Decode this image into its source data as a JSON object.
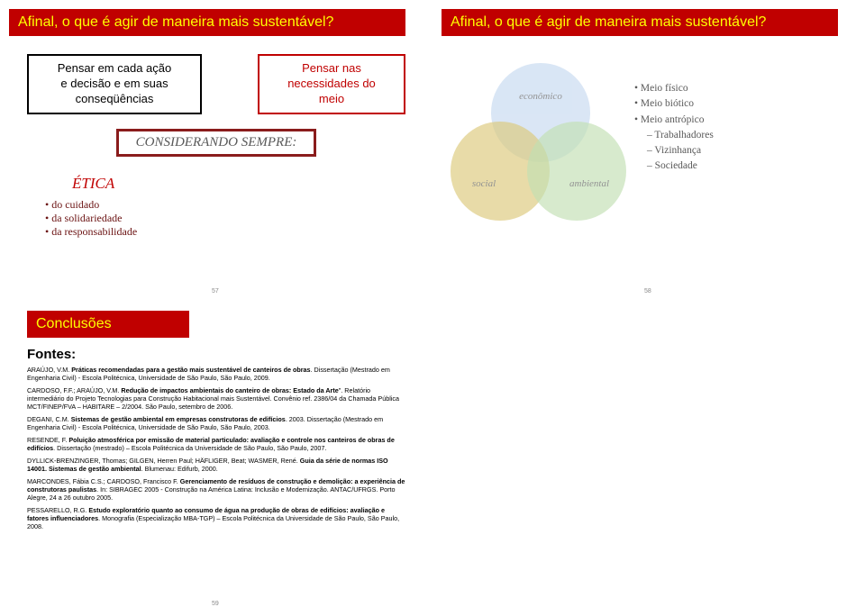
{
  "slide57": {
    "title": "Afinal, o que é agir de maneira mais sustentável?",
    "box1": "Pensar em cada ação\ne decisão e em suas\nconseqüências",
    "box2": "Pensar nas\nnecessidades do\nmeio",
    "considerando": "CONSIDERANDO SEMPRE:",
    "etica_title": "ÉTICA",
    "etica_items": [
      "do cuidado",
      "da solidariedade",
      "da responsabilidade"
    ],
    "pagenum": "57"
  },
  "slide58": {
    "title": "Afinal, o que é agir de maneira mais sustentável?",
    "venn": {
      "economico": "econômico",
      "social": "social",
      "ambiental": "ambiental",
      "colors": {
        "economico": "#c6d9f0",
        "social": "#dcc97a",
        "ambiental": "#c2e0b3"
      }
    },
    "meio": {
      "fisico": "Meio físico",
      "biotico": "Meio biótico",
      "antropico": "Meio antrópico",
      "sub": [
        "Trabalhadores",
        "Vizinhança",
        "Sociedade"
      ]
    },
    "pagenum": "58"
  },
  "slide59": {
    "title": "Conclusões",
    "fontes_label": "Fontes:",
    "refs": {
      "r1": "ARAÚJO, V.M. Práticas recomendadas para a gestão mais sustentável de canteiros de obras. Dissertação (Mestrado em Engenharia Civil) - Escola Politécnica, Universidade de São Paulo, São Paulo, 2009.",
      "r2": "CARDOSO, F.F.; ARAÚJO, V.M. Redução de impactos ambientais do canteiro de obras: Estado da Arte\". Relatório intermediário do Projeto Tecnologias para Construção Habitacional mais Sustentável. Convênio ref. 2386/04 da Chamada Pública MCT/FINEP/FVA – HABITARE – 2/2004. São Paulo, setembro de 2006.",
      "r3": "DEGANI, C.M. Sistemas de gestão ambiental em empresas construtoras de edifícios. 2003. Dissertação (Mestrado em Engenharia Civil) - Escola Politécnica, Universidade de São Paulo, São Paulo, 2003.",
      "r4": "RESENDE, F. Poluição atmosférica por emissão de material particulado: avaliação e controle nos canteiros de obras de edifícios. Dissertação (mestrado) – Escola Politécnica da Universidade de São Paulo, São Paulo, 2007.",
      "r5": "DYLLICK-BRENZINGER, Thomas; GILGEN, Herren Paul; HÄFLIGER, Beat; WASMER, René. Guia da série de normas ISO 14001. Sistemas de gestão ambiental. Blumenau: Edifurb, 2000.",
      "r6": "MARCONDES, Fábia C.S.; CARDOSO, Francisco F. Gerenciamento de resíduos de construção e demolição: a experiência de construtoras paulistas. In: SIBRAGEC 2005 - Construção na América Latina: Inclusão e Modernização. ANTAC/UFRGS. Porto Alegre, 24 a 26 outubro 2005.",
      "r7": "PESSARELLO, R.G. Estudo exploratório quanto ao consumo de água na produção de obras de edifícios: avaliação e fatores influenciadores. Monografia (Especialização MBA-TGP) – Escola Politécnica da Universidade de São Paulo, São Paulo, 2008."
    },
    "pagenum": "59"
  },
  "colors": {
    "title_bg": "#c00000",
    "title_fg": "#ffff00",
    "consider_border": "#8a1c1c",
    "etica_text": "#6b1313"
  }
}
